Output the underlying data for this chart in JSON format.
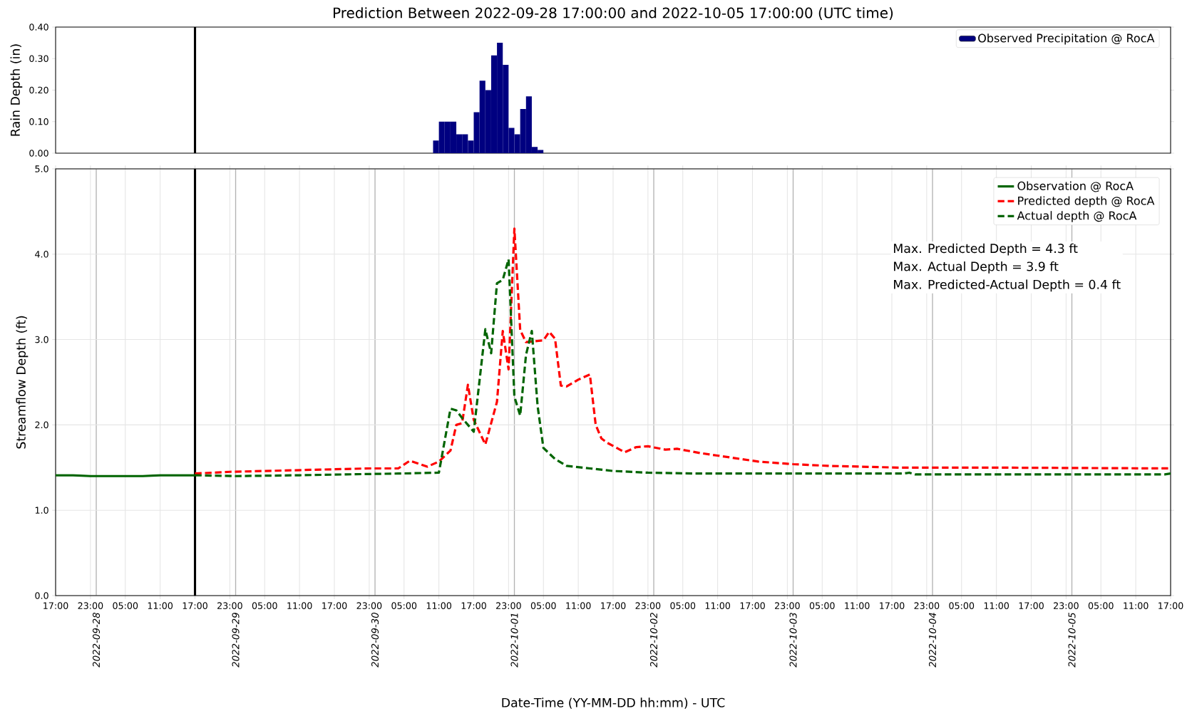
{
  "chart_data": [
    {
      "type": "histogram",
      "title": "Prediction Between 2022-09-28 17:00:00 and 2022-10-05 17:00:00 (UTC time)",
      "ylabel": "Rain Depth (in)",
      "bins": [
        "2022-09-30T10:00",
        "2022-09-30T11:00",
        "2022-09-30T12:00",
        "2022-09-30T13:00",
        "2022-09-30T14:00",
        "2022-09-30T15:00",
        "2022-09-30T16:00",
        "2022-09-30T17:00",
        "2022-09-30T18:00",
        "2022-09-30T19:00",
        "2022-09-30T20:00",
        "2022-09-30T21:00",
        "2022-09-30T22:00",
        "2022-09-30T23:00",
        "2022-10-01T00:00",
        "2022-10-01T01:00",
        "2022-10-01T02:00",
        "2022-10-01T03:00",
        "2022-10-01T04:00",
        "2022-10-01T05:00"
      ],
      "series": [
        {
          "name": "Observed Precipitation @ RocA",
          "color": "#000080",
          "values": [
            0.04,
            0.1,
            0.1,
            0.1,
            0.06,
            0.06,
            0.04,
            0.13,
            0.23,
            0.2,
            0.31,
            0.35,
            0.28,
            0.08,
            0.06,
            0.14,
            0.18,
            0.02,
            0.01
          ]
        }
      ],
      "xlim": [
        "2022-09-27T17:00",
        "2022-10-05T17:00"
      ],
      "ylim": [
        0,
        0.4
      ],
      "yticks": [
        {
          "value": 0,
          "label": "0.00"
        },
        {
          "value": 0.1,
          "label": "0.10"
        },
        {
          "value": 0.2,
          "label": "0.20"
        },
        {
          "value": 0.3,
          "label": "0.30"
        },
        {
          "value": 0.4,
          "label": "0.40"
        }
      ],
      "tick_labels": "y",
      "legend": "top right",
      "ref_lines": [
        {
          "axis": "x",
          "value": "2022-09-28T17:00",
          "color": "#000000"
        }
      ]
    },
    {
      "type": "line",
      "xlabel": "Date-Time (YY-MM-DD hh:mm) - UTC",
      "ylabel": "Streamflow Depth (ft)",
      "series": [
        {
          "name": "Observation @ RocA",
          "color": "#006400",
          "line_style": "solid",
          "x": [
            "2022-09-27T17:00",
            "2022-09-27T20:00",
            "2022-09-27T23:00",
            "2022-09-28T02:00",
            "2022-09-28T05:00",
            "2022-09-28T08:00",
            "2022-09-28T11:00",
            "2022-09-28T14:00",
            "2022-09-28T17:00"
          ],
          "values": [
            1.41,
            1.41,
            1.4,
            1.4,
            1.4,
            1.4,
            1.41,
            1.41,
            1.41
          ]
        },
        {
          "name": "Predicted depth @ RocA",
          "color": "#ff0000",
          "line_style": "dashed",
          "x": [
            "2022-09-28T17:00",
            "2022-09-28T23:00",
            "2022-09-29T05:00",
            "2022-09-29T11:00",
            "2022-09-29T17:00",
            "2022-09-29T23:00",
            "2022-09-30T04:00",
            "2022-09-30T06:00",
            "2022-09-30T09:00",
            "2022-09-30T11:00",
            "2022-09-30T13:00",
            "2022-09-30T14:00",
            "2022-09-30T15:00",
            "2022-09-30T16:00",
            "2022-09-30T17:00",
            "2022-09-30T19:00",
            "2022-09-30T21:00",
            "2022-09-30T22:00",
            "2022-09-30T23:00",
            "2022-10-01T00:00",
            "2022-10-01T01:00",
            "2022-10-01T02:00",
            "2022-10-01T05:00",
            "2022-10-01T06:00",
            "2022-10-01T07:00",
            "2022-10-01T08:00",
            "2022-10-01T09:00",
            "2022-10-01T11:00",
            "2022-10-01T13:00",
            "2022-10-01T14:00",
            "2022-10-01T15:00",
            "2022-10-01T16:00",
            "2022-10-01T19:00",
            "2022-10-01T21:00",
            "2022-10-01T23:00",
            "2022-10-02T02:00",
            "2022-10-02T04:00",
            "2022-10-02T08:00",
            "2022-10-02T11:00",
            "2022-10-02T14:00",
            "2022-10-02T18:00",
            "2022-10-03T00:00",
            "2022-10-03T06:00",
            "2022-10-03T18:00",
            "2022-10-04T09:00",
            "2022-10-05T17:00"
          ],
          "values": [
            1.43,
            1.45,
            1.46,
            1.47,
            1.48,
            1.49,
            1.49,
            1.58,
            1.51,
            1.57,
            1.7,
            2.0,
            2.02,
            2.47,
            2.06,
            1.77,
            2.27,
            3.1,
            2.65,
            4.3,
            3.11,
            2.97,
            2.99,
            3.09,
            3.01,
            2.46,
            2.45,
            2.53,
            2.59,
            2.0,
            1.84,
            1.79,
            1.68,
            1.74,
            1.75,
            1.71,
            1.72,
            1.67,
            1.64,
            1.61,
            1.57,
            1.54,
            1.52,
            1.5,
            1.5,
            1.49
          ]
        },
        {
          "name": "Actual depth @ RocA",
          "color": "#006400",
          "line_style": "dashed",
          "x": [
            "2022-09-28T17:00",
            "2022-09-29T00:00",
            "2022-09-29T11:00",
            "2022-09-29T19:00",
            "2022-09-30T04:00",
            "2022-09-30T11:00",
            "2022-09-30T13:00",
            "2022-09-30T14:00",
            "2022-09-30T15:00",
            "2022-09-30T17:00",
            "2022-09-30T19:00",
            "2022-09-30T20:00",
            "2022-09-30T21:00",
            "2022-09-30T22:00",
            "2022-09-30T23:00",
            "2022-10-01T00:00",
            "2022-10-01T01:00",
            "2022-10-01T02:00",
            "2022-10-01T03:00",
            "2022-10-01T04:00",
            "2022-10-01T05:00",
            "2022-10-01T07:00",
            "2022-10-01T09:00",
            "2022-10-01T13:00",
            "2022-10-01T17:00",
            "2022-10-01T23:00",
            "2022-10-02T07:00",
            "2022-10-03T19:00",
            "2022-10-03T20:00",
            "2022-10-03T21:00",
            "2022-10-05T16:00",
            "2022-10-05T17:00"
          ],
          "values": [
            1.41,
            1.4,
            1.41,
            1.42,
            1.43,
            1.44,
            2.19,
            2.17,
            2.08,
            1.92,
            3.12,
            2.84,
            3.66,
            3.7,
            3.94,
            2.33,
            2.11,
            2.82,
            3.1,
            2.22,
            1.73,
            1.6,
            1.52,
            1.49,
            1.46,
            1.44,
            1.43,
            1.43,
            1.44,
            1.42,
            1.42,
            1.43
          ]
        }
      ],
      "xlim": [
        "2022-09-27T17:00",
        "2022-10-05T17:00"
      ],
      "ylim": [
        0,
        5
      ],
      "xticks": [
        {
          "value": "2022-09-27T17:00",
          "label": "17:00"
        },
        {
          "value": "2022-09-27T23:00",
          "label": "23:00"
        },
        {
          "value": "2022-09-28T05:00",
          "label": "05:00"
        },
        {
          "value": "2022-09-28T11:00",
          "label": "11:00"
        },
        {
          "value": "2022-09-28T17:00",
          "label": "17:00"
        },
        {
          "value": "2022-09-28T23:00",
          "label": "23:00"
        },
        {
          "value": "2022-09-29T05:00",
          "label": "05:00"
        },
        {
          "value": "2022-09-29T11:00",
          "label": "11:00"
        },
        {
          "value": "2022-09-29T17:00",
          "label": "17:00"
        },
        {
          "value": "2022-09-29T23:00",
          "label": "23:00"
        },
        {
          "value": "2022-09-30T05:00",
          "label": "05:00"
        },
        {
          "value": "2022-09-30T11:00",
          "label": "11:00"
        },
        {
          "value": "2022-09-30T17:00",
          "label": "17:00"
        },
        {
          "value": "2022-09-30T23:00",
          "label": "23:00"
        },
        {
          "value": "2022-10-01T05:00",
          "label": "05:00"
        },
        {
          "value": "2022-10-01T11:00",
          "label": "11:00"
        },
        {
          "value": "2022-10-01T17:00",
          "label": "17:00"
        },
        {
          "value": "2022-10-01T23:00",
          "label": "23:00"
        },
        {
          "value": "2022-10-02T05:00",
          "label": "05:00"
        },
        {
          "value": "2022-10-02T11:00",
          "label": "11:00"
        },
        {
          "value": "2022-10-02T17:00",
          "label": "17:00"
        },
        {
          "value": "2022-10-02T23:00",
          "label": "23:00"
        },
        {
          "value": "2022-10-03T05:00",
          "label": "05:00"
        },
        {
          "value": "2022-10-03T11:00",
          "label": "11:00"
        },
        {
          "value": "2022-10-03T17:00",
          "label": "17:00"
        },
        {
          "value": "2022-10-03T23:00",
          "label": "23:00"
        },
        {
          "value": "2022-10-04T05:00",
          "label": "05:00"
        },
        {
          "value": "2022-10-04T11:00",
          "label": "11:00"
        },
        {
          "value": "2022-10-04T17:00",
          "label": "17:00"
        },
        {
          "value": "2022-10-04T23:00",
          "label": "23:00"
        },
        {
          "value": "2022-10-05T05:00",
          "label": "05:00"
        },
        {
          "value": "2022-10-05T11:00",
          "label": "11:00"
        },
        {
          "value": "2022-10-05T17:00",
          "label": "17:00"
        }
      ],
      "x2lim": [
        "2022-09-27T17:00",
        "2022-10-05T17:00"
      ],
      "x2ticks": [
        "2022-09-28",
        "2022-09-29",
        "2022-09-30",
        "2022-10-01",
        "2022-10-02",
        "2022-10-03",
        "2022-10-04",
        "2022-10-05"
      ],
      "yticks": [
        {
          "value": 0,
          "label": "0.0"
        },
        {
          "value": 1,
          "label": "1.0"
        },
        {
          "value": 2,
          "label": "2.0"
        },
        {
          "value": 3,
          "label": "3.0"
        },
        {
          "value": 4,
          "label": "4.0"
        },
        {
          "value": 5,
          "label": "5.0"
        }
      ],
      "grid": true,
      "legend": "top right",
      "annotations": [
        "Max. Predicted Depth = 4.3 ft",
        "Max. Actual Depth = 3.9 ft",
        "Max. Predicted-Actual Depth = 0.4 ft"
      ],
      "ref_lines": [
        {
          "axis": "x",
          "value": "2022-09-28T17:00",
          "color": "#000000"
        }
      ]
    }
  ]
}
